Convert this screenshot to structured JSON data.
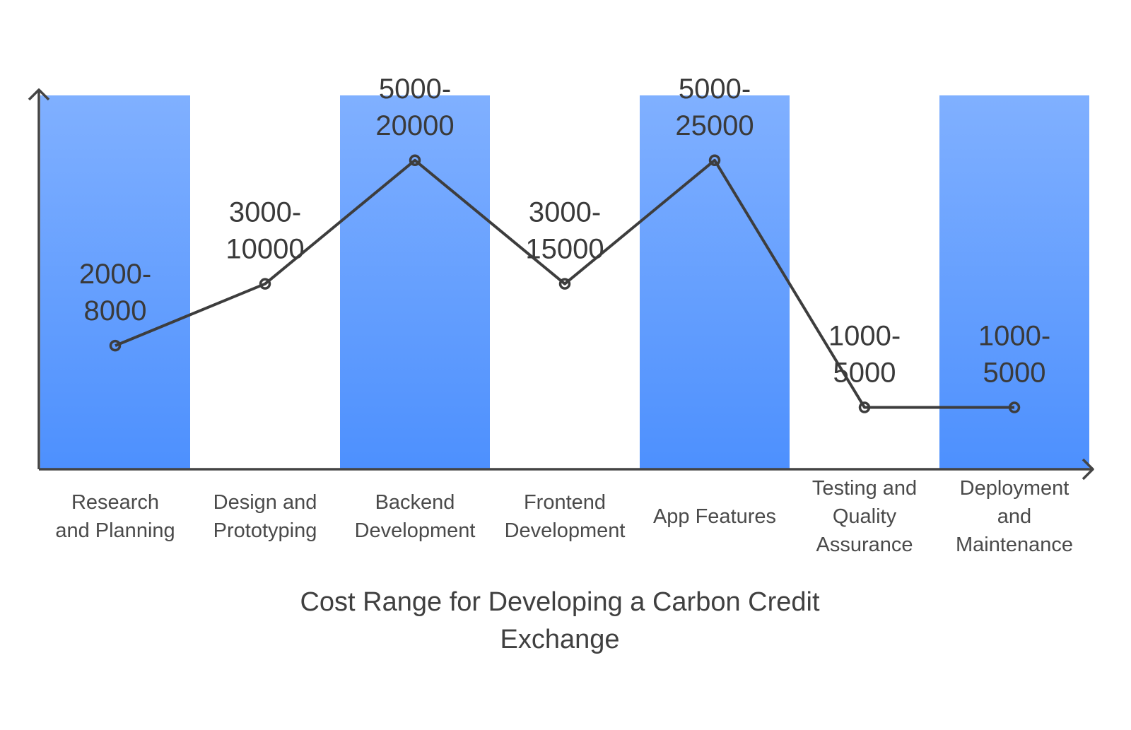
{
  "chart_data": {
    "type": "bar+line",
    "title": "Cost Range for Developing a Carbon Credit Exchange",
    "title_lines": [
      "Cost Range for Developing a Carbon Credit",
      "Exchange"
    ],
    "categories": [
      "Research and Planning",
      "Design and Prototyping",
      "Backend Development",
      "Frontend Development",
      "App Features",
      "Testing and Quality Assurance",
      "Deployment and Maintenance"
    ],
    "category_label_lines": [
      [
        "Research",
        "and Planning"
      ],
      [
        "Design and",
        "Prototyping"
      ],
      [
        "Backend",
        "Development"
      ],
      [
        "Frontend",
        "Development"
      ],
      [
        "App Features"
      ],
      [
        "Testing and",
        "Quality",
        "Assurance"
      ],
      [
        "Deployment",
        "and",
        "Maintenance"
      ]
    ],
    "value_labels": [
      "2000-8000",
      "3000-10000",
      "5000-20000",
      "3000-15000",
      "5000-25000",
      "1000-5000",
      "1000-5000"
    ],
    "value_label_lines": [
      [
        "2000-",
        "8000"
      ],
      [
        "3000-",
        "10000"
      ],
      [
        "5000-",
        "20000"
      ],
      [
        "3000-",
        "15000"
      ],
      [
        "5000-",
        "25000"
      ],
      [
        "1000-",
        "5000"
      ],
      [
        "1000-",
        "5000"
      ]
    ],
    "line_levels": [
      2,
      3,
      5,
      3,
      5,
      1,
      1
    ],
    "level_range": [
      0,
      6.05
    ],
    "highlighted_columns": [
      0,
      2,
      4,
      6
    ],
    "colors": {
      "bar_top": "#80b0ff",
      "bar_bottom": "#4d90fe",
      "line": "#3d3d3d",
      "axis": "#444444",
      "text": "#444444"
    },
    "grid": false,
    "legend": "none"
  }
}
